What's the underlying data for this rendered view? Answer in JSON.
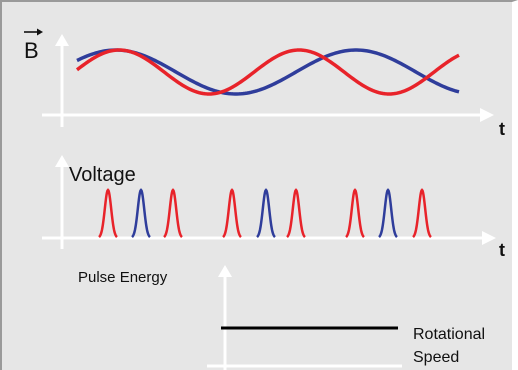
{
  "panel_top": {
    "y_label": "B",
    "x_label": "t",
    "series_colors": {
      "a": "#e8232a",
      "b": "#2f3d9b"
    }
  },
  "panel_middle": {
    "y_label": "Voltage",
    "x_label": "t",
    "pulse_pattern": [
      "red",
      "blue",
      "red",
      "red",
      "blue",
      "red",
      "red",
      "blue",
      "red"
    ]
  },
  "panel_bottom": {
    "y_label": "Pulse Energy",
    "x_label_line1": "Rotational",
    "x_label_line2": "Speed"
  },
  "colors": {
    "background": "#e6e6e6",
    "axis": "#ffffff",
    "red": "#e8232a",
    "blue": "#2f3d9b",
    "level_line": "#000000"
  }
}
